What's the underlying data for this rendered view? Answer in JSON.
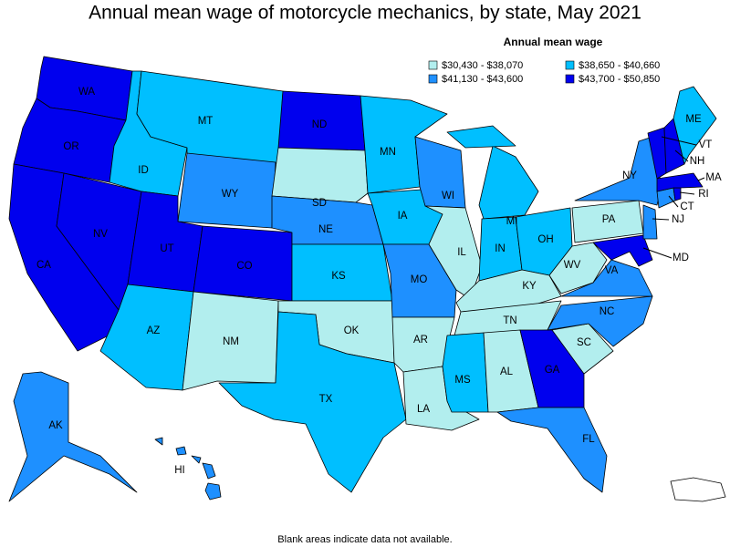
{
  "title": "Annual mean wage of motorcycle mechanics, by state, May 2021",
  "legend": {
    "title": "Annual mean wage",
    "items": [
      {
        "label": "$30,430 - $38,070",
        "color": "#b2eeee"
      },
      {
        "label": "$38,650 - $40,660",
        "color": "#00bfff"
      },
      {
        "label": "$41,130 - $43,600",
        "color": "#1e90ff"
      },
      {
        "label": "$43,700 - $50,850",
        "color": "#0000ee"
      }
    ]
  },
  "states": [
    {
      "abbr": "WA",
      "bin": 3
    },
    {
      "abbr": "OR",
      "bin": 3
    },
    {
      "abbr": "CA",
      "bin": 3
    },
    {
      "abbr": "NV",
      "bin": 3
    },
    {
      "abbr": "ID",
      "bin": 1
    },
    {
      "abbr": "MT",
      "bin": 1
    },
    {
      "abbr": "WY",
      "bin": 2
    },
    {
      "abbr": "UT",
      "bin": 3
    },
    {
      "abbr": "CO",
      "bin": 3
    },
    {
      "abbr": "AZ",
      "bin": 1
    },
    {
      "abbr": "NM",
      "bin": 0
    },
    {
      "abbr": "ND",
      "bin": 3
    },
    {
      "abbr": "SD",
      "bin": 0
    },
    {
      "abbr": "NE",
      "bin": 2
    },
    {
      "abbr": "KS",
      "bin": 1
    },
    {
      "abbr": "OK",
      "bin": 0
    },
    {
      "abbr": "TX",
      "bin": 1
    },
    {
      "abbr": "MN",
      "bin": 1
    },
    {
      "abbr": "IA",
      "bin": 1
    },
    {
      "abbr": "MO",
      "bin": 2
    },
    {
      "abbr": "AR",
      "bin": 0
    },
    {
      "abbr": "LA",
      "bin": 0
    },
    {
      "abbr": "WI",
      "bin": 2
    },
    {
      "abbr": "IL",
      "bin": 0
    },
    {
      "abbr": "MI",
      "bin": 1
    },
    {
      "abbr": "IN",
      "bin": 1
    },
    {
      "abbr": "OH",
      "bin": 1
    },
    {
      "abbr": "KY",
      "bin": 0
    },
    {
      "abbr": "TN",
      "bin": 0
    },
    {
      "abbr": "MS",
      "bin": 1
    },
    {
      "abbr": "AL",
      "bin": 0
    },
    {
      "abbr": "GA",
      "bin": 3
    },
    {
      "abbr": "FL",
      "bin": 2
    },
    {
      "abbr": "SC",
      "bin": 0
    },
    {
      "abbr": "NC",
      "bin": 2
    },
    {
      "abbr": "VA",
      "bin": 2
    },
    {
      "abbr": "WV",
      "bin": 0
    },
    {
      "abbr": "MD",
      "bin": 3
    },
    {
      "abbr": "PA",
      "bin": 0
    },
    {
      "abbr": "NY",
      "bin": 2
    },
    {
      "abbr": "NJ",
      "bin": 2
    },
    {
      "abbr": "CT",
      "bin": 2
    },
    {
      "abbr": "RI",
      "bin": 3
    },
    {
      "abbr": "MA",
      "bin": 3
    },
    {
      "abbr": "VT",
      "bin": 3
    },
    {
      "abbr": "NH",
      "bin": 3
    },
    {
      "abbr": "ME",
      "bin": 1
    },
    {
      "abbr": "AK",
      "bin": 2
    },
    {
      "abbr": "HI",
      "bin": 2
    }
  ],
  "note": "Blank areas indicate data not available."
}
